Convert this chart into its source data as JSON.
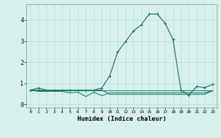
{
  "xlabel": "Humidex (Indice chaleur)",
  "bg_color": "#d7f0ee",
  "grid_color": "#c0e0dc",
  "line_color": "#1a7a6e",
  "x_values": [
    0,
    1,
    2,
    3,
    4,
    5,
    6,
    7,
    8,
    9,
    10,
    11,
    12,
    13,
    14,
    15,
    16,
    17,
    18,
    19,
    20,
    21,
    22,
    23
  ],
  "series": [
    [
      0.68,
      0.78,
      0.68,
      0.68,
      0.68,
      0.68,
      0.68,
      0.68,
      0.68,
      0.78,
      1.35,
      2.48,
      2.98,
      3.48,
      3.78,
      4.28,
      4.28,
      3.85,
      3.08,
      0.68,
      0.45,
      0.85,
      0.8,
      0.95
    ],
    [
      0.68,
      0.68,
      0.68,
      0.68,
      0.68,
      0.68,
      0.68,
      0.68,
      0.68,
      0.68,
      0.68,
      0.68,
      0.68,
      0.68,
      0.68,
      0.68,
      0.68,
      0.68,
      0.68,
      0.68,
      0.68,
      0.68,
      0.68,
      0.68
    ],
    [
      0.68,
      0.62,
      0.62,
      0.62,
      0.62,
      0.55,
      0.58,
      0.38,
      0.58,
      0.42,
      0.55,
      0.55,
      0.55,
      0.55,
      0.55,
      0.55,
      0.55,
      0.55,
      0.55,
      0.55,
      0.55,
      0.55,
      0.55,
      0.65
    ],
    [
      0.68,
      0.68,
      0.68,
      0.68,
      0.68,
      0.68,
      0.68,
      0.68,
      0.68,
      0.68,
      0.48,
      0.48,
      0.48,
      0.48,
      0.48,
      0.48,
      0.48,
      0.48,
      0.48,
      0.48,
      0.48,
      0.48,
      0.48,
      0.65
    ]
  ],
  "ylim": [
    -0.15,
    4.75
  ],
  "xlim": [
    -0.5,
    23.5
  ],
  "yticks": [
    0,
    1,
    2,
    3,
    4
  ],
  "xticks": [
    0,
    1,
    2,
    3,
    4,
    5,
    6,
    7,
    8,
    9,
    10,
    11,
    12,
    13,
    14,
    15,
    16,
    17,
    18,
    19,
    20,
    21,
    22,
    23
  ]
}
